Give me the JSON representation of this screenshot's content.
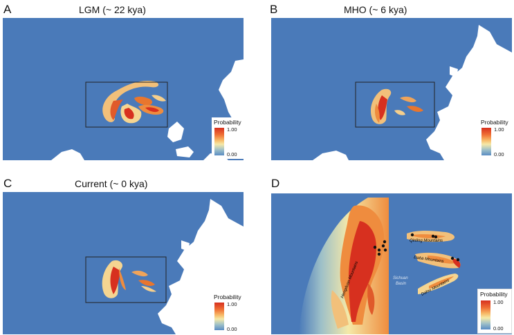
{
  "panels": [
    {
      "letter": "A",
      "title": "LGM (~ 22 kya)"
    },
    {
      "letter": "B",
      "title": "MHO (~ 6 kya)"
    },
    {
      "letter": "C",
      "title": "Current (~ 0 kya)"
    },
    {
      "letter": "D",
      "title": ""
    }
  ],
  "legend": {
    "title": "Probability",
    "max": "1.00",
    "min": "0.00"
  },
  "places": {
    "qinling": "Qinling Mountains",
    "daba": "Daba Mountains",
    "sichuan1": "Sichuan",
    "sichuan2": "Basin",
    "dalou": "Dalou Mountains",
    "hengduan": "Hengduan Mountains"
  },
  "colors": {
    "sea": "#4a7ab9",
    "land": "#ffffff",
    "high": "#d7301f",
    "mid": "#f7d98a",
    "low": "#5a8cc4"
  }
}
